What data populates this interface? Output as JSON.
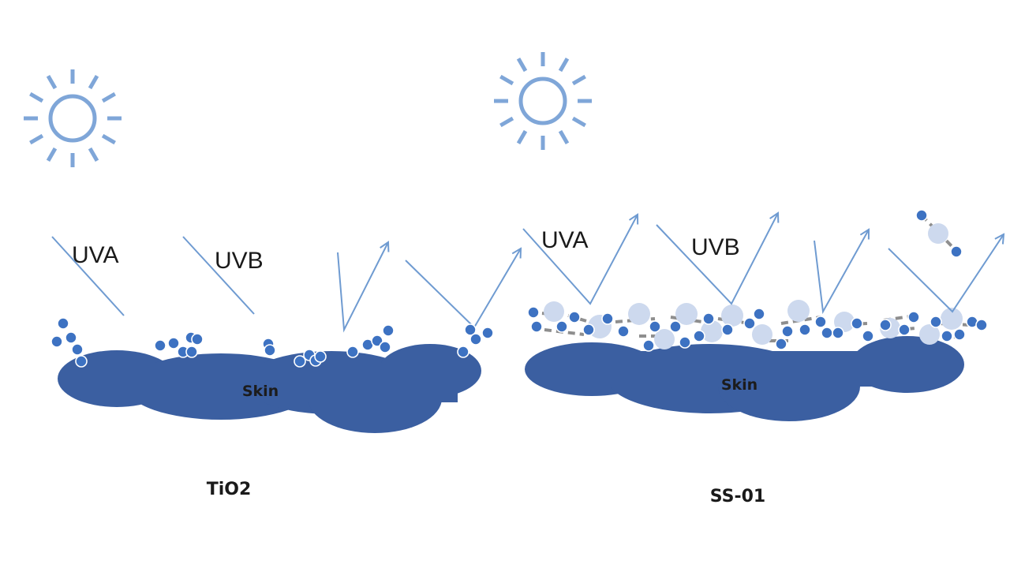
{
  "colors": {
    "sun": "#7fa6d8",
    "ray": "#6f9bd1",
    "skin": "#3b5fa1",
    "particle": "#3d72c2",
    "particle_light": "#cdd9ee",
    "linker": "#8e8e8e"
  },
  "icons": {
    "sun": "sun-icon"
  },
  "panels": [
    {
      "id": "tio2",
      "caption": "TiO2",
      "uva_label": "UVA",
      "uvb_label": "UVB",
      "skin_label": "Skin"
    },
    {
      "id": "ss01",
      "caption": "SS-01",
      "uva_label": "UVA",
      "uvb_label": "UVB",
      "skin_label": "Skin"
    }
  ]
}
